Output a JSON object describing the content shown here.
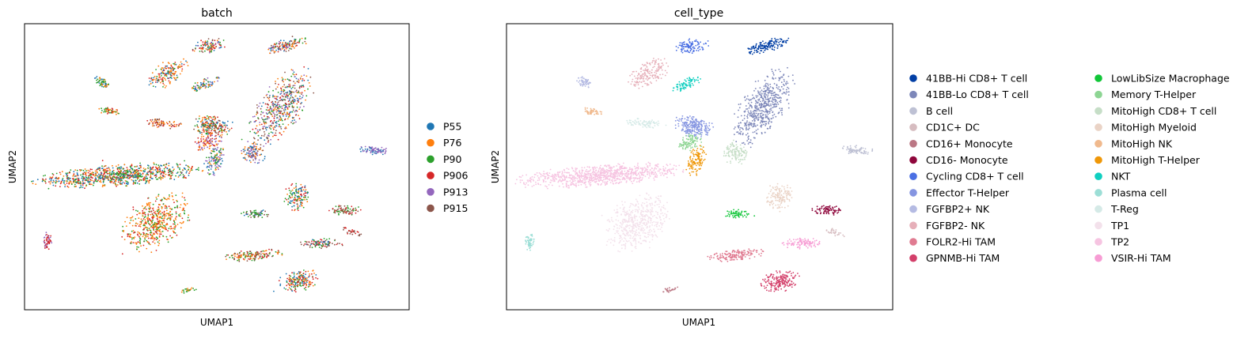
{
  "chart_data": [
    {
      "type": "scatter",
      "title": "batch",
      "xlabel": "UMAP1",
      "ylabel": "UMAP2",
      "legend_position": "right",
      "series": [
        {
          "name": "P55",
          "color": "#1f77b4"
        },
        {
          "name": "P76",
          "color": "#ff7f0e"
        },
        {
          "name": "P90",
          "color": "#2ca02c"
        },
        {
          "name": "P906",
          "color": "#d62728"
        },
        {
          "name": "P913",
          "color": "#9467bd"
        },
        {
          "name": "P915",
          "color": "#8c564b"
        }
      ]
    },
    {
      "type": "scatter",
      "title": "cell_type",
      "xlabel": "UMAP1",
      "ylabel": "UMAP2",
      "legend_position": "right",
      "legend_columns": 2,
      "series": [
        {
          "name": "41BB-Hi CD8+ T cell",
          "color": "#023fa5"
        },
        {
          "name": "41BB-Lo CD8+ T cell",
          "color": "#7d87b9"
        },
        {
          "name": "B cell",
          "color": "#bec1d4"
        },
        {
          "name": "CD1C+ DC",
          "color": "#d6bcc0"
        },
        {
          "name": "CD16+ Monocyte",
          "color": "#bb7784"
        },
        {
          "name": "CD16- Monocyte",
          "color": "#8e063b"
        },
        {
          "name": "Cycling CD8+ T cell",
          "color": "#4a6fe3"
        },
        {
          "name": "Effector T-Helper",
          "color": "#8595e1"
        },
        {
          "name": "FGFBP2+ NK",
          "color": "#b5bbe3"
        },
        {
          "name": "FGFBP2- NK",
          "color": "#e6afb9"
        },
        {
          "name": "FOLR2-Hi TAM",
          "color": "#e07b91"
        },
        {
          "name": "GPNMB-Hi TAM",
          "color": "#d33f6a"
        },
        {
          "name": "LowLibSize Macrophage",
          "color": "#11c638"
        },
        {
          "name": "Memory T-Helper",
          "color": "#8dd593"
        },
        {
          "name": "MitoHigh CD8+ T cell",
          "color": "#c6dec7"
        },
        {
          "name": "MitoHigh Myeloid",
          "color": "#ead3c6"
        },
        {
          "name": "MitoHigh NK",
          "color": "#f0b98d"
        },
        {
          "name": "MitoHigh T-Helper",
          "color": "#ef9708"
        },
        {
          "name": "NKT",
          "color": "#0fcfc0"
        },
        {
          "name": "Plasma cell",
          "color": "#9cded6"
        },
        {
          "name": "T-Reg",
          "color": "#d5eae7"
        },
        {
          "name": "TP1",
          "color": "#f3e1eb"
        },
        {
          "name": "TP2",
          "color": "#f6c4e1"
        },
        {
          "name": "VSIR-Hi TAM",
          "color": "#f79cd4"
        }
      ]
    }
  ]
}
